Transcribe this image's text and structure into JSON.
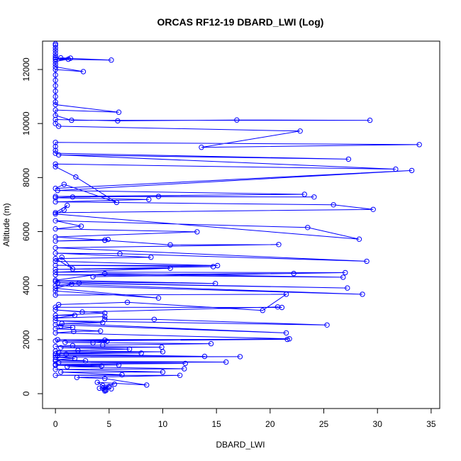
{
  "chart_data": {
    "type": "line",
    "title": "ORCAS RF12-19 DBARD_LWI (Log)",
    "xlabel": "DBARD_LWI",
    "ylabel": "Altitude (m)",
    "xlim": [
      -1.2,
      35.8
    ],
    "ylim": [
      -550,
      13050
    ],
    "xticks": [
      0,
      5,
      10,
      15,
      20,
      25,
      30,
      35
    ],
    "yticks": [
      0,
      2000,
      4000,
      6000,
      8000,
      10000,
      12000
    ],
    "grid": false,
    "legend": "none",
    "marker": "open-circle",
    "color": "#0000ff",
    "series": [
      {
        "points": [
          [
            0,
            12950
          ],
          [
            0,
            12900
          ],
          [
            0,
            12800
          ],
          [
            0,
            12700
          ],
          [
            0,
            12600
          ],
          [
            0,
            12500
          ],
          [
            0,
            12430
          ],
          [
            5.2,
            12350
          ],
          [
            0,
            12380
          ],
          [
            1.4,
            12420
          ],
          [
            0.5,
            12430
          ],
          [
            1.2,
            12380
          ],
          [
            0,
            12300
          ],
          [
            0,
            12200
          ],
          [
            0,
            12100
          ],
          [
            2.6,
            11920
          ],
          [
            0,
            12000
          ],
          [
            0,
            11800
          ],
          [
            0,
            11600
          ],
          [
            0,
            11400
          ],
          [
            0,
            11200
          ],
          [
            0,
            11000
          ],
          [
            0,
            10800
          ],
          [
            0,
            10700
          ],
          [
            5.9,
            10420
          ],
          [
            0,
            10500
          ],
          [
            0,
            10300
          ],
          [
            1.5,
            10120
          ],
          [
            29.3,
            10120
          ],
          [
            16.9,
            10130
          ],
          [
            5.8,
            10100
          ],
          [
            0,
            10150
          ],
          [
            0,
            10000
          ],
          [
            0.3,
            9900
          ],
          [
            22.8,
            9720
          ],
          [
            13.6,
            9120
          ],
          [
            33.9,
            9220
          ],
          [
            0,
            9300
          ],
          [
            0,
            9150
          ],
          [
            0,
            9000
          ],
          [
            0,
            8900
          ],
          [
            27.3,
            8680
          ],
          [
            0.3,
            8840
          ],
          [
            31.7,
            8310
          ],
          [
            0,
            8500
          ],
          [
            0,
            8400
          ],
          [
            1.9,
            8020
          ],
          [
            5.7,
            7080
          ],
          [
            0.8,
            7750
          ],
          [
            0,
            7600
          ],
          [
            33.2,
            8260
          ],
          [
            0.2,
            7520
          ],
          [
            23.2,
            7380
          ],
          [
            0,
            7300
          ],
          [
            24.1,
            7280
          ],
          [
            9.6,
            7300
          ],
          [
            1.6,
            7280
          ],
          [
            0,
            7250
          ],
          [
            8.7,
            7190
          ],
          [
            0,
            7100
          ],
          [
            25.9,
            6990
          ],
          [
            29.6,
            6820
          ],
          [
            0,
            6700
          ],
          [
            1.1,
            6970
          ],
          [
            0.8,
            6800
          ],
          [
            0,
            6650
          ],
          [
            28.3,
            5720
          ],
          [
            23.5,
            6150
          ],
          [
            0,
            6400
          ],
          [
            2.4,
            6200
          ],
          [
            0,
            6100
          ],
          [
            13.2,
            5990
          ],
          [
            0,
            5800
          ],
          [
            4.6,
            5680
          ],
          [
            0,
            5650
          ],
          [
            4.9,
            5710
          ],
          [
            4.6,
            5680
          ],
          [
            10.7,
            5510
          ],
          [
            20.8,
            5520
          ],
          [
            0,
            5400
          ],
          [
            29.0,
            4900
          ],
          [
            6.0,
            5180
          ],
          [
            0,
            5200
          ],
          [
            8.9,
            5050
          ],
          [
            0,
            5000
          ],
          [
            1.6,
            4620
          ],
          [
            0.6,
            5050
          ],
          [
            0,
            4900
          ],
          [
            15.1,
            4740
          ],
          [
            0,
            4750
          ],
          [
            14.7,
            4700
          ],
          [
            0,
            4600
          ],
          [
            10.7,
            4640
          ],
          [
            0,
            4500
          ],
          [
            27.0,
            4480
          ],
          [
            3.5,
            4330
          ],
          [
            22.2,
            4450
          ],
          [
            0,
            4400
          ],
          [
            26.8,
            4310
          ],
          [
            4.6,
            4450
          ],
          [
            0,
            4200
          ],
          [
            14.9,
            4080
          ],
          [
            0,
            4150
          ],
          [
            0.2,
            4100
          ],
          [
            27.2,
            3910
          ],
          [
            2.2,
            4100
          ],
          [
            0,
            4000
          ],
          [
            28.6,
            3680
          ],
          [
            1.5,
            4050
          ],
          [
            0,
            3900
          ],
          [
            9.6,
            3540
          ],
          [
            0,
            3800
          ],
          [
            0,
            3650
          ],
          [
            21.5,
            3680
          ],
          [
            19.3,
            3080
          ],
          [
            6.7,
            3380
          ],
          [
            0.3,
            3300
          ],
          [
            0,
            3200
          ],
          [
            21.1,
            3190
          ],
          [
            20.7,
            3210
          ],
          [
            2.5,
            3020
          ],
          [
            0,
            3100
          ],
          [
            4.6,
            2980
          ],
          [
            0,
            2900
          ],
          [
            1.8,
            2900
          ],
          [
            0,
            2800
          ],
          [
            4.6,
            2850
          ],
          [
            4.6,
            2750
          ],
          [
            9.2,
            2750
          ],
          [
            25.3,
            2540
          ],
          [
            0,
            2700
          ],
          [
            4.4,
            2630
          ],
          [
            0.6,
            2600
          ],
          [
            21.5,
            2250
          ],
          [
            0,
            2550
          ],
          [
            0.5,
            2500
          ],
          [
            1.6,
            2450
          ],
          [
            0,
            2400
          ],
          [
            4.2,
            2320
          ],
          [
            1.7,
            2300
          ],
          [
            0,
            2250
          ],
          [
            21.8,
            2030
          ],
          [
            4.6,
            1980
          ],
          [
            0.2,
            2000
          ],
          [
            21.6,
            2010
          ],
          [
            0,
            1950
          ],
          [
            4.8,
            1940
          ],
          [
            3.5,
            1880
          ],
          [
            0.9,
            1900
          ],
          [
            14.5,
            1850
          ],
          [
            4.4,
            1800
          ],
          [
            1.6,
            1780
          ],
          [
            0,
            1750
          ],
          [
            9.9,
            1720
          ],
          [
            0.5,
            1700
          ],
          [
            6.9,
            1650
          ],
          [
            2.1,
            1600
          ],
          [
            0,
            1580
          ],
          [
            10.0,
            1550
          ],
          [
            0.3,
            1520
          ],
          [
            8.0,
            1500
          ],
          [
            0,
            1480
          ],
          [
            1.0,
            1460
          ],
          [
            13.9,
            1380
          ],
          [
            0,
            1420
          ],
          [
            0.2,
            1400
          ],
          [
            17.2,
            1370
          ],
          [
            0,
            1350
          ],
          [
            1.8,
            1300
          ],
          [
            0,
            1260
          ],
          [
            2.8,
            1220
          ],
          [
            0,
            1200
          ],
          [
            15.9,
            1170
          ],
          [
            0.3,
            1150
          ],
          [
            12.1,
            1120
          ],
          [
            0,
            1080
          ],
          [
            5.9,
            1060
          ],
          [
            0,
            1050
          ],
          [
            4.3,
            1020
          ],
          [
            1.1,
            1000
          ],
          [
            12.0,
            920
          ],
          [
            0,
            900
          ],
          [
            10.0,
            800
          ],
          [
            0.5,
            800
          ],
          [
            6.2,
            700
          ],
          [
            0,
            680
          ],
          [
            11.6,
            680
          ],
          [
            2.0,
            600
          ],
          [
            4.6,
            560
          ],
          [
            8.5,
            320
          ],
          [
            3.9,
            420
          ],
          [
            4.4,
            300
          ],
          [
            5.5,
            350
          ],
          [
            4.1,
            200
          ],
          [
            5.0,
            260
          ],
          [
            4.6,
            160
          ],
          [
            4.7,
            120
          ],
          [
            4.4,
            200
          ],
          [
            5.2,
            180
          ],
          [
            4.6,
            150
          ],
          [
            4.6,
            100
          ]
        ]
      }
    ]
  }
}
